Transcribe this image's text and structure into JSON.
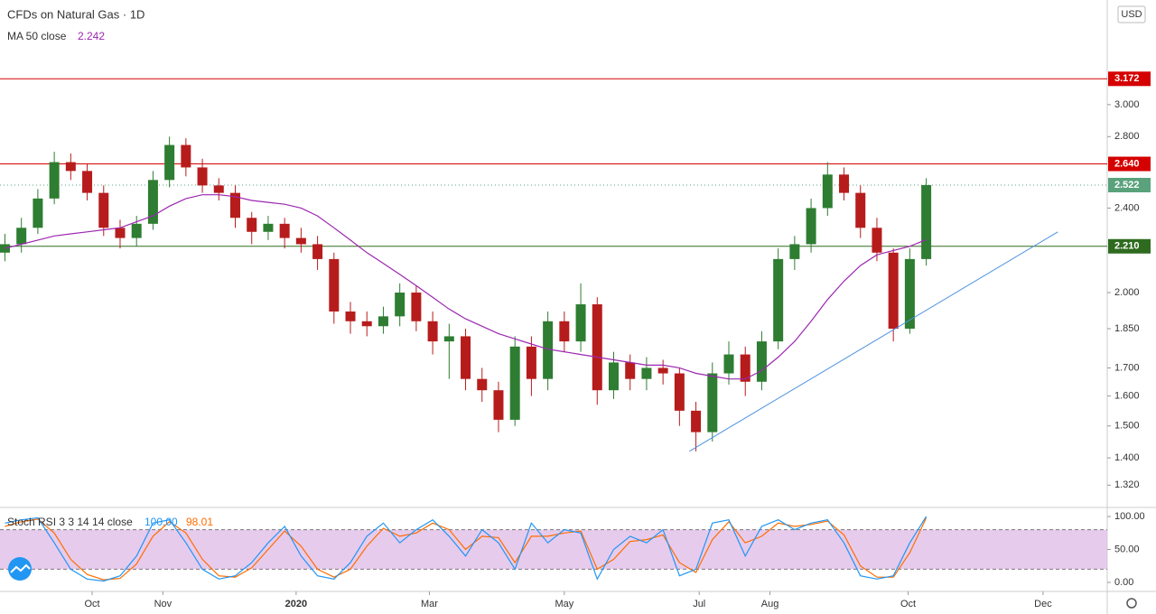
{
  "chart_data": {
    "type": "candlestick",
    "title": "CFDs on Natural Gas · 1D",
    "currency": "USD",
    "log_scale": true,
    "up_color": "#2e7d32",
    "down_color": "#b71c1c",
    "ohlc": {
      "open": [
        2.18,
        2.22,
        2.3,
        2.45,
        2.65,
        2.6,
        2.48,
        2.3,
        2.25,
        2.32,
        2.55,
        2.75,
        2.62,
        2.52,
        2.48,
        2.35,
        2.28,
        2.32,
        2.25,
        2.22,
        2.15,
        1.92,
        1.88,
        1.86,
        1.9,
        2.0,
        1.88,
        1.8,
        1.82,
        1.66,
        1.62,
        1.52,
        1.78,
        1.66,
        1.88,
        1.8,
        1.95,
        1.62,
        1.72,
        1.66,
        1.7,
        1.68,
        1.55,
        1.48,
        1.68,
        1.75,
        1.65,
        1.8,
        2.15,
        2.22,
        2.4,
        2.58,
        2.48,
        2.3,
        2.18,
        1.85,
        2.15
      ],
      "high": [
        2.27,
        2.35,
        2.5,
        2.71,
        2.7,
        2.64,
        2.52,
        2.34,
        2.36,
        2.6,
        2.8,
        2.79,
        2.67,
        2.56,
        2.52,
        2.38,
        2.36,
        2.35,
        2.3,
        2.26,
        2.18,
        1.96,
        1.92,
        1.94,
        2.04,
        2.03,
        1.92,
        1.87,
        1.85,
        1.7,
        1.65,
        1.82,
        1.82,
        1.92,
        1.92,
        2.04,
        1.98,
        1.76,
        1.75,
        1.74,
        1.73,
        1.7,
        1.58,
        1.72,
        1.8,
        1.78,
        1.84,
        2.2,
        2.26,
        2.45,
        2.65,
        2.62,
        2.52,
        2.35,
        2.2,
        2.2,
        2.56
      ],
      "low": [
        2.14,
        2.18,
        2.27,
        2.42,
        2.55,
        2.44,
        2.26,
        2.2,
        2.21,
        2.29,
        2.51,
        2.57,
        2.48,
        2.44,
        2.3,
        2.22,
        2.24,
        2.2,
        2.18,
        2.1,
        1.87,
        1.83,
        1.82,
        1.83,
        1.86,
        1.84,
        1.75,
        1.66,
        1.62,
        1.58,
        1.48,
        1.5,
        1.6,
        1.62,
        1.76,
        1.76,
        1.57,
        1.59,
        1.62,
        1.62,
        1.64,
        1.5,
        1.42,
        1.45,
        1.64,
        1.6,
        1.62,
        1.77,
        2.1,
        2.18,
        2.36,
        2.44,
        2.25,
        2.14,
        1.8,
        1.83,
        2.12
      ],
      "close": [
        2.22,
        2.3,
        2.45,
        2.65,
        2.6,
        2.48,
        2.3,
        2.25,
        2.32,
        2.55,
        2.75,
        2.62,
        2.52,
        2.48,
        2.35,
        2.28,
        2.32,
        2.25,
        2.22,
        2.15,
        1.92,
        1.88,
        1.86,
        1.9,
        2.0,
        1.88,
        1.8,
        1.82,
        1.66,
        1.62,
        1.52,
        1.78,
        1.66,
        1.88,
        1.8,
        1.95,
        1.62,
        1.72,
        1.66,
        1.7,
        1.68,
        1.55,
        1.48,
        1.68,
        1.75,
        1.65,
        1.8,
        2.15,
        2.22,
        2.4,
        2.58,
        2.48,
        2.3,
        2.18,
        1.85,
        2.15,
        2.522
      ]
    },
    "indicator": {
      "name": "MA 50 close",
      "value_label": "2.242",
      "color": "#9c27b0",
      "values": [
        2.2,
        2.22,
        2.24,
        2.26,
        2.27,
        2.28,
        2.29,
        2.3,
        2.33,
        2.36,
        2.41,
        2.45,
        2.47,
        2.47,
        2.46,
        2.44,
        2.43,
        2.42,
        2.4,
        2.36,
        2.3,
        2.24,
        2.18,
        2.13,
        2.08,
        2.03,
        1.98,
        1.93,
        1.89,
        1.86,
        1.83,
        1.81,
        1.79,
        1.77,
        1.76,
        1.75,
        1.74,
        1.73,
        1.72,
        1.71,
        1.71,
        1.7,
        1.68,
        1.67,
        1.66,
        1.66,
        1.69,
        1.74,
        1.8,
        1.88,
        1.97,
        2.05,
        2.12,
        2.17,
        2.19,
        2.21,
        2.242
      ]
    },
    "trendline": {
      "x": [
        41.6,
        64.0
      ],
      "y": [
        1.42,
        2.28
      ],
      "color": "#4a90e2"
    },
    "levels": [
      {
        "value": 3.172,
        "label": "3.172",
        "color": "#d50000",
        "style": "solid"
      },
      {
        "value": 2.64,
        "label": "2.640",
        "color": "#d50000",
        "style": "solid"
      },
      {
        "value": 2.522,
        "label": "2.522",
        "color": "#5aa27c",
        "style": "dotted"
      },
      {
        "value": 2.21,
        "label": "2.210",
        "color": "#2e6b1f",
        "style": "solid"
      }
    ],
    "ylim": [
      1.258,
      3.76
    ],
    "yticks": [
      {
        "value": 3.0,
        "label": "3.000"
      },
      {
        "value": 2.8,
        "label": "2.800"
      },
      {
        "value": 2.4,
        "label": "2.400"
      },
      {
        "value": 2.0,
        "label": "2.000"
      },
      {
        "value": 1.85,
        "label": "1.850"
      },
      {
        "value": 1.7,
        "label": "1.700"
      },
      {
        "value": 1.6,
        "label": "1.600"
      },
      {
        "value": 1.5,
        "label": "1.500"
      },
      {
        "value": 1.4,
        "label": "1.400"
      },
      {
        "value": 1.32,
        "label": "1.320"
      }
    ],
    "xlim": [
      -0.3,
      67.0
    ],
    "xticks": [
      {
        "value": 5.3,
        "label": "Oct"
      },
      {
        "value": 9.6,
        "label": "Nov"
      },
      {
        "value": 17.7,
        "label": "2020"
      },
      {
        "value": 25.8,
        "label": "Mar"
      },
      {
        "value": 34.0,
        "label": "May"
      },
      {
        "value": 42.2,
        "label": "Jul"
      },
      {
        "value": 46.5,
        "label": "Aug"
      },
      {
        "value": 54.9,
        "label": "Oct"
      },
      {
        "value": 63.1,
        "label": "Dec"
      }
    ],
    "stoch": {
      "title": "Stoch RSI 3 3 14 14 close",
      "ylim": [
        -13.7,
        113.7
      ],
      "yticks": [
        {
          "value": 100,
          "label": "100.00"
        },
        {
          "value": 50,
          "label": "50.00"
        },
        {
          "value": 0,
          "label": "0.00"
        }
      ],
      "band": [
        20,
        80
      ],
      "band_color": "#e1bee7",
      "series": [
        {
          "color": "#2196f3",
          "last_label": "100.00",
          "values": [
            90,
            95,
            98,
            60,
            20,
            5,
            2,
            10,
            40,
            90,
            95,
            60,
            20,
            5,
            10,
            30,
            60,
            85,
            40,
            10,
            5,
            30,
            70,
            90,
            60,
            80,
            95,
            70,
            40,
            80,
            60,
            20,
            90,
            60,
            80,
            75,
            5,
            50,
            70,
            60,
            80,
            10,
            20,
            90,
            95,
            40,
            85,
            95,
            80,
            90,
            95,
            60,
            10,
            5,
            10,
            60,
            100
          ]
        },
        {
          "color": "#ff6d00",
          "last_label": "98.01",
          "values": [
            85,
            92,
            96,
            75,
            35,
            12,
            4,
            6,
            28,
            70,
            92,
            75,
            35,
            10,
            8,
            22,
            50,
            78,
            55,
            20,
            8,
            20,
            55,
            82,
            70,
            75,
            90,
            80,
            50,
            70,
            68,
            30,
            70,
            70,
            75,
            78,
            20,
            35,
            62,
            65,
            72,
            30,
            15,
            65,
            92,
            60,
            70,
            90,
            85,
            88,
            93,
            72,
            25,
            8,
            8,
            45,
            98.01
          ]
        }
      ]
    }
  }
}
